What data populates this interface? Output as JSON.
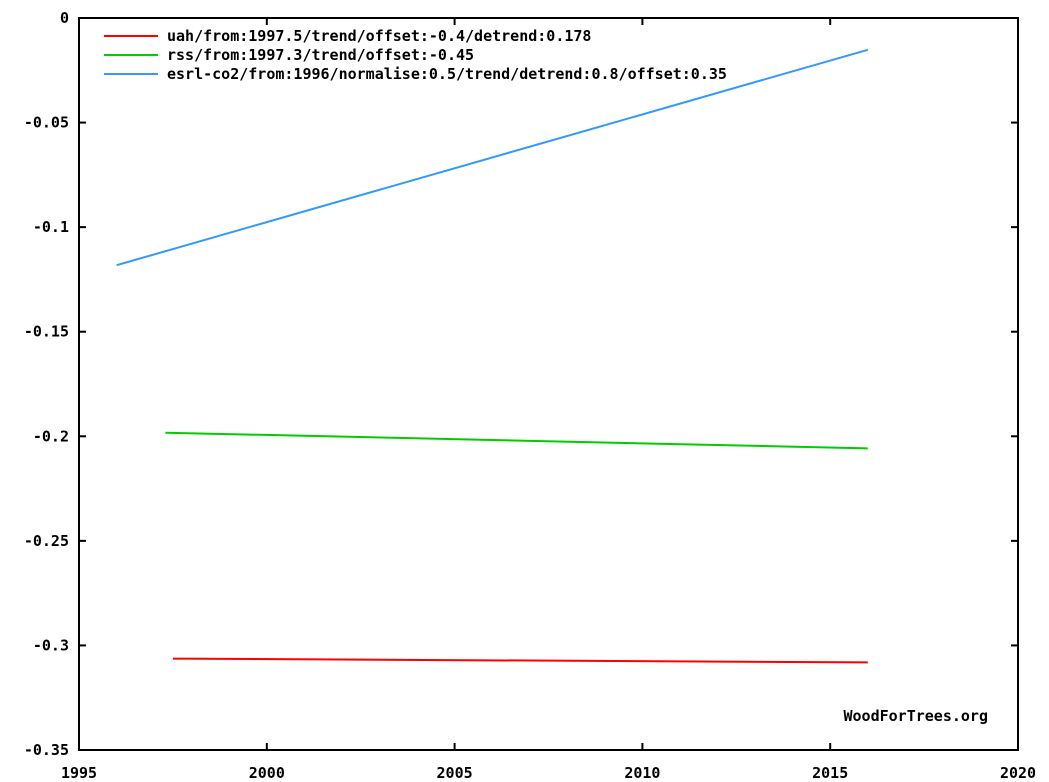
{
  "chart_data": {
    "type": "line",
    "xlim": [
      1995,
      2020
    ],
    "ylim": [
      -0.35,
      0
    ],
    "x_ticks": [
      1995,
      2000,
      2005,
      2010,
      2015,
      2020
    ],
    "x_tick_labels": [
      "1995",
      "2000",
      "2005",
      "2010",
      "2015",
      "2020"
    ],
    "y_ticks": [
      0,
      -0.05,
      -0.1,
      -0.15,
      -0.2,
      -0.25,
      -0.3,
      -0.35
    ],
    "y_tick_labels": [
      "0",
      "-0.05",
      "-0.1",
      "-0.15",
      "-0.2",
      "-0.25",
      "-0.3",
      "-0.35"
    ],
    "grid": false,
    "legend_position": "top-left",
    "series": [
      {
        "name": "uah/from:1997.5/trend/offset:-0.4/detrend:0.178",
        "color": "#ff0000",
        "points": [
          [
            1997.5,
            -0.3063
          ],
          [
            2016.0,
            -0.3081
          ]
        ]
      },
      {
        "name": "rss/from:1997.3/trend/offset:-0.45",
        "color": "#00cc00",
        "points": [
          [
            1997.3,
            -0.1983
          ],
          [
            2016.0,
            -0.2058
          ]
        ]
      },
      {
        "name": "esrl-co2/from:1996/normalise:0.5/trend/detrend:0.8/offset:0.35",
        "color": "#3399ff",
        "points": [
          [
            1996.0,
            -0.1182
          ],
          [
            2016.0,
            -0.0152
          ]
        ]
      }
    ],
    "annotation": "WoodForTrees.org"
  }
}
